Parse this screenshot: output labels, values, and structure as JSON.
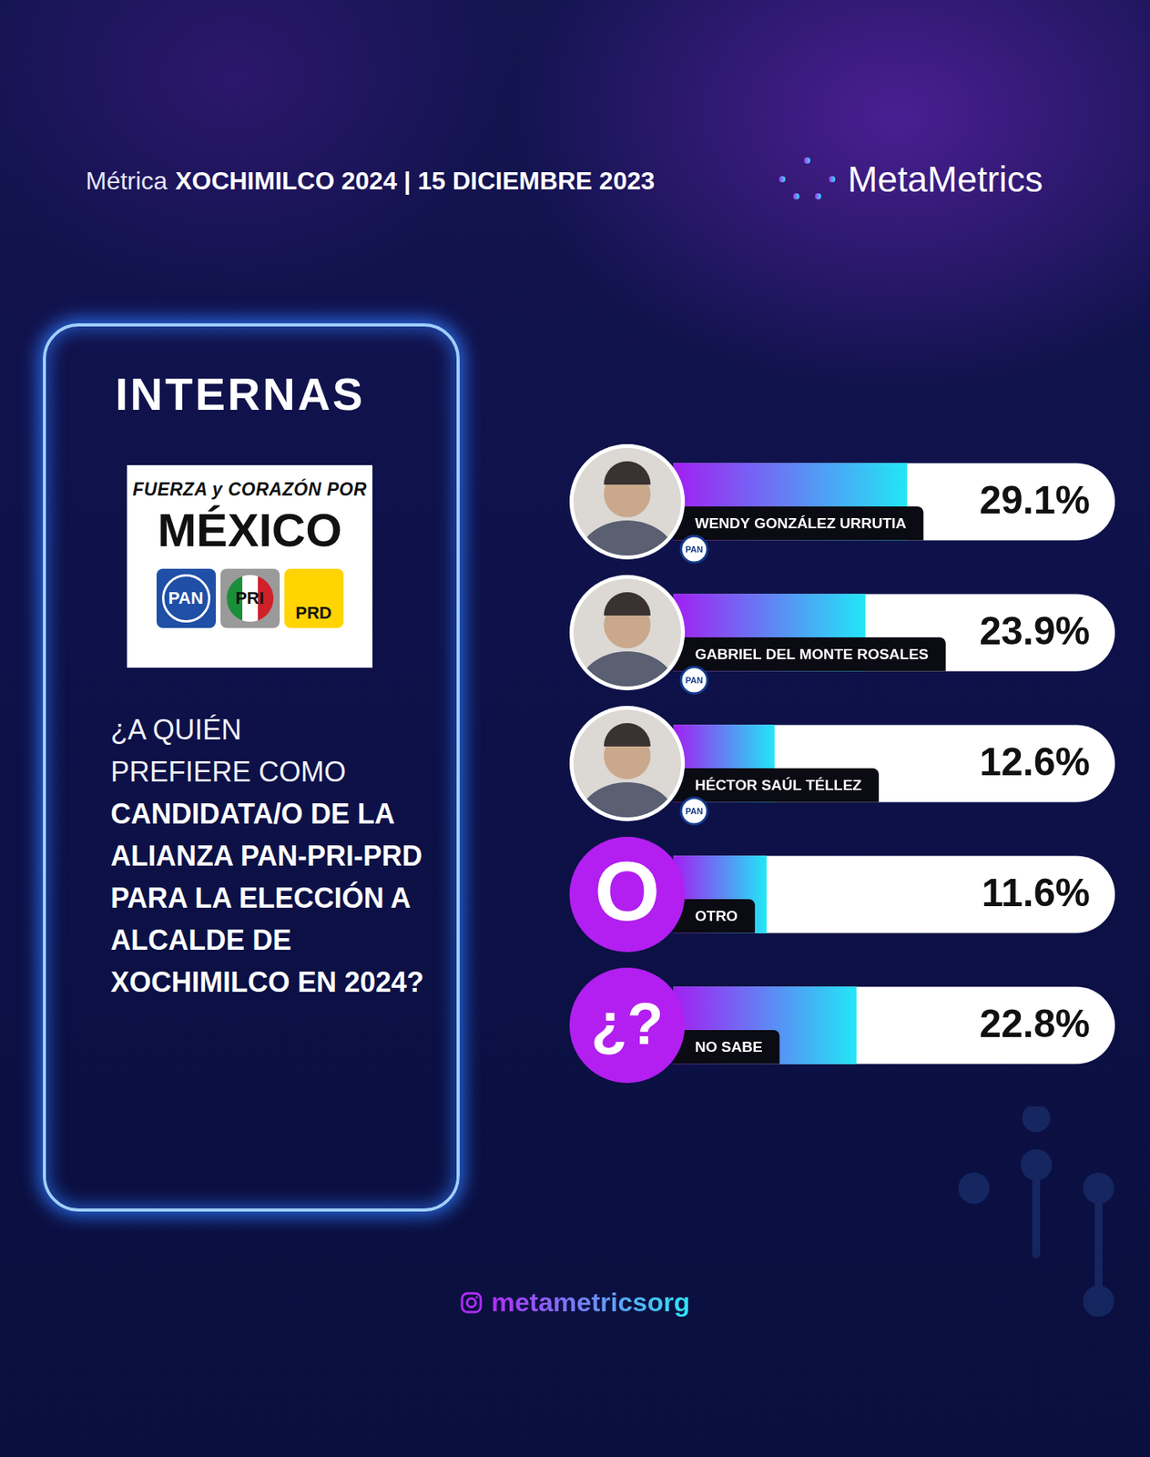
{
  "header": {
    "prefix": "Métrica",
    "title": "XOCHIMILCO 2024 | 15 DICIEMBRE 2023",
    "brand": "MetaMetrics"
  },
  "panel": {
    "title": "INTERNAS",
    "logo": {
      "slogan": "FUERZA y CORAZÓN POR",
      "name": "MÉXICO",
      "parties": [
        "PAN",
        "PRI",
        "PRD"
      ]
    },
    "question_intro": "¿A QUIÉN PREFIERE COMO",
    "question": "CANDIDATA/O DE LA ALIANZA PAN-PRI-PRD PARA LA ELECCIÓN A ALCALDE DE XOCHIMILCO EN 2024?"
  },
  "footer": "metametricsorg",
  "chart_data": {
    "type": "bar",
    "orientation": "horizontal",
    "categories": [
      "WENDY GONZÁLEZ URRUTIA",
      "GABRIEL DEL MONTE ROSALES",
      "HÉCTOR SAÚL TÉLLEZ",
      "OTRO",
      "NO SABE"
    ],
    "values": [
      29.1,
      23.9,
      12.6,
      11.6,
      22.8
    ],
    "value_labels": [
      "29.1%",
      "23.9%",
      "12.6%",
      "11.6%",
      "22.8%"
    ],
    "badges": [
      "PAN",
      "PAN",
      "PAN",
      null,
      null
    ],
    "icons": [
      null,
      null,
      null,
      "O",
      "¿?"
    ],
    "color": "#a21ff2",
    "xlim": [
      0,
      55
    ],
    "data_labels": true,
    "tick_labels": false,
    "grid": false
  }
}
